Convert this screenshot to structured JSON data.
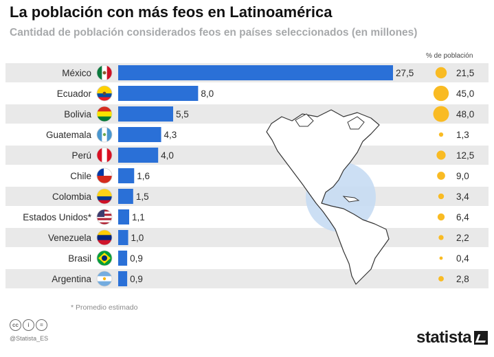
{
  "header": {
    "title": "La población con más feos en Latinoamérica",
    "subtitle": "Cantidad de población considerados feos en países seleccionados (en millones)",
    "pct_header": "% de población"
  },
  "footer": {
    "note": "* Promedio estimado",
    "handle": "@Statista_ES",
    "brand": "statista",
    "cc_icons": [
      "cc-icon",
      "by-icon",
      "nd-icon"
    ],
    "cc_labels": [
      "cc",
      "i",
      "="
    ]
  },
  "colors": {
    "bar": "#2a70d7",
    "circle": "#f9bb23",
    "stripe": "#e9e9e9",
    "map_highlight": "#c6dcf3"
  },
  "chart_data": {
    "type": "bar",
    "orientation": "horizontal",
    "categories": [
      "México",
      "Ecuador",
      "Bolivia",
      "Guatemala",
      "Perú",
      "Chile",
      "Colombia",
      "Estados Unidos*",
      "Venezuela",
      "Brasil",
      "Argentina"
    ],
    "series": [
      {
        "values": [
          27.5,
          8.0,
          5.5,
          4.3,
          4.0,
          1.6,
          1.5,
          1.1,
          1.0,
          0.9,
          0.9
        ]
      },
      {
        "name": "% de población",
        "values": [
          21.5,
          45.0,
          48.0,
          1.3,
          12.5,
          9.0,
          3.4,
          6.4,
          2.2,
          0.4,
          2.8
        ]
      }
    ],
    "value_labels": [
      "27,5",
      "8,0",
      "5,5",
      "4,3",
      "4,0",
      "1,6",
      "1,5",
      "1,1",
      "1,0",
      "0,9",
      "0,9"
    ],
    "pct_labels": [
      "21,5",
      "45,0",
      "48,0",
      "1,3",
      "12,5",
      "9,0",
      "3,4",
      "6,4",
      "2,2",
      "0,4",
      "2,8"
    ],
    "flags": [
      "mexico-flag-icon",
      "ecuador-flag-icon",
      "bolivia-flag-icon",
      "guatemala-flag-icon",
      "peru-flag-icon",
      "chile-flag-icon",
      "colombia-flag-icon",
      "usa-flag-icon",
      "venezuela-flag-icon",
      "brazil-flag-icon",
      "argentina-flag-icon"
    ],
    "grid": false,
    "legend": "none"
  }
}
